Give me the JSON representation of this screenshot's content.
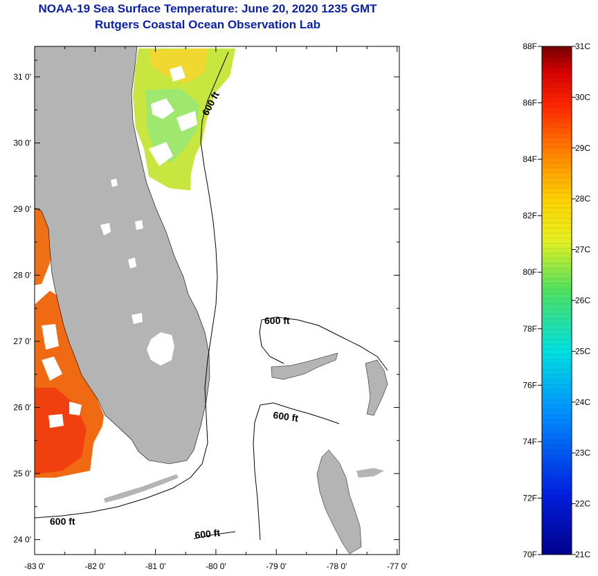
{
  "header": {
    "title": "NOAA-19 Sea Surface Temperature:  June 20, 2020 1235 GMT",
    "subtitle": "Rutgers Coastal Ocean Observation Lab"
  },
  "map": {
    "lat_labels": [
      "31 0'",
      "30 0'",
      "29 0'",
      "28 0'",
      "27 0'",
      "26 0'",
      "25 0'",
      "24 0'"
    ],
    "lon_labels": [
      "-83 0'",
      "-82 0'",
      "-81 0'",
      "-80 0'",
      "-79 0'",
      "-78 0'",
      "-77 0'"
    ],
    "contour_labels": [
      "600 ft",
      "600 ft",
      "600 ft",
      "600 ft",
      "600 ft"
    ]
  },
  "colorbar": {
    "f_labels": [
      "88F",
      "86F",
      "84F",
      "82F",
      "80F",
      "78F",
      "76F",
      "74F",
      "72F",
      "70F"
    ],
    "c_labels": [
      "31C",
      "30C",
      "29C",
      "28C",
      "27C",
      "26C",
      "25C",
      "24C",
      "23C",
      "22C",
      "21C"
    ]
  },
  "colors": {
    "title": "#0a20a8",
    "land": "#b4b4b4",
    "warm": "#f05a10",
    "mild": "#b4e63c"
  }
}
